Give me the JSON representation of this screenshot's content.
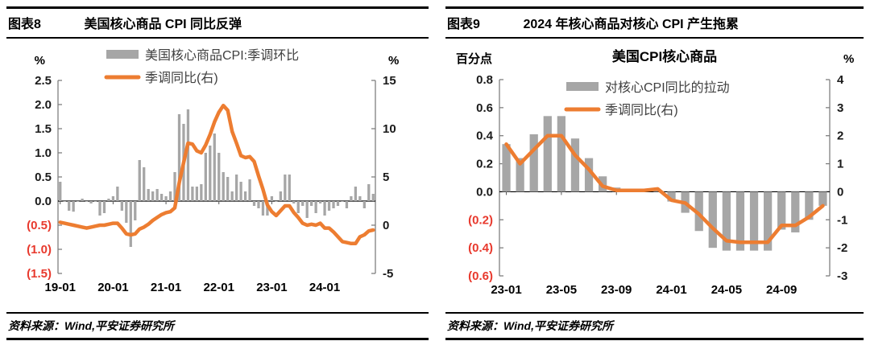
{
  "figures": [
    {
      "label": "图表8",
      "title": "美国核心商品 CPI 同比反弹",
      "source": "资料来源：Wind,平安证券研究所"
    },
    {
      "label": "图表9",
      "title": "2024 年核心商品对核心 CPI 产生拖累",
      "source": "资料来源：Wind,平安证券研究所"
    }
  ],
  "colors": {
    "bar": "#a6a6a6",
    "line": "#ed7d31",
    "negative_label": "#e8392d",
    "positive_label": "#1a1a1a",
    "axis": "#7f7f7f",
    "zero_line": "#000000"
  },
  "chart_data": [
    {
      "type": "bar+line",
      "title": "",
      "x_start": "19-01",
      "x_freq": "monthly",
      "x_ticks": [
        {
          "label": "19-01",
          "index": 0
        },
        {
          "label": "20-01",
          "index": 12
        },
        {
          "label": "21-01",
          "index": 24
        },
        {
          "label": "22-01",
          "index": 36
        },
        {
          "label": "23-01",
          "index": 48
        },
        {
          "label": "24-01",
          "index": 60
        }
      ],
      "axis_left": {
        "unit": "%",
        "min": -1.5,
        "max": 2.5,
        "ticks": [
          "2.5",
          "2.0",
          "1.5",
          "1.0",
          "0.5",
          "0.0",
          "(0.5)",
          "(1.0)",
          "(1.5)"
        ]
      },
      "axis_right": {
        "unit": "%",
        "min": -5,
        "max": 15,
        "ticks": [
          "15",
          "10",
          "5",
          "0",
          "-5"
        ]
      },
      "legend": [
        {
          "name": "美国核心商品CPI:季调环比",
          "swatch": "bar"
        },
        {
          "name": "季调同比(右)",
          "swatch": "line"
        }
      ],
      "grid": false,
      "series": [
        {
          "name": "美国核心商品CPI:季调环比",
          "kind": "bar",
          "axis": "left",
          "values": [
            0.4,
            0.0,
            -0.2,
            -0.22,
            0.0,
            0.05,
            0.0,
            -0.05,
            0.0,
            -0.3,
            -0.25,
            0.05,
            0.1,
            0.3,
            -0.2,
            -0.45,
            -0.95,
            -0.4,
            0.85,
            0.7,
            0.25,
            0.2,
            0.25,
            0.15,
            0.1,
            0.2,
            0.6,
            1.8,
            1.6,
            1.9,
            0.3,
            0.3,
            0.35,
            1.0,
            1.15,
            1.4,
            1.0,
            0.6,
            0.5,
            0.2,
            0.55,
            0.4,
            0.2,
            0.45,
            -0.1,
            -0.15,
            -0.3,
            -0.3,
            0.1,
            0.0,
            0.2,
            0.55,
            0.55,
            -0.05,
            -0.25,
            -0.1,
            -0.35,
            -0.1,
            -0.25,
            -0.05,
            -0.3,
            -0.2,
            -0.15,
            -0.1,
            0.0,
            -0.15,
            0.1,
            0.3,
            0.1,
            -0.15,
            0.35,
            0.15
          ]
        },
        {
          "name": "季调同比(右)",
          "kind": "line",
          "axis": "right",
          "values": [
            0.3,
            0.2,
            0.1,
            0.0,
            -0.1,
            -0.2,
            -0.3,
            -0.2,
            -0.1,
            0.0,
            0.0,
            0.1,
            0.2,
            0.2,
            -0.3,
            -0.9,
            -1.0,
            -0.9,
            -0.4,
            -0.2,
            0.1,
            0.5,
            0.8,
            1.1,
            1.3,
            1.4,
            1.8,
            4.4,
            6.5,
            8.5,
            8.4,
            7.7,
            7.5,
            8.3,
            9.4,
            10.7,
            11.7,
            12.4,
            11.9,
            9.7,
            8.5,
            7.2,
            7.0,
            7.1,
            6.6,
            5.1,
            3.7,
            2.1,
            1.4,
            1.0,
            1.5,
            2.0,
            2.0,
            1.3,
            0.8,
            0.2,
            0.0,
            0.1,
            0.0,
            0.2,
            -0.3,
            -0.3,
            -0.7,
            -1.2,
            -1.7,
            -1.8,
            -1.9,
            -1.9,
            -1.2,
            -1.0,
            -0.6,
            -0.5
          ]
        }
      ]
    },
    {
      "type": "bar+line",
      "title": "美国CPI核心商品",
      "x_start": "23-01",
      "x_freq": "monthly",
      "x_ticks": [
        {
          "label": "23-01",
          "index": 0
        },
        {
          "label": "23-05",
          "index": 4
        },
        {
          "label": "23-09",
          "index": 8
        },
        {
          "label": "24-01",
          "index": 12
        },
        {
          "label": "24-05",
          "index": 16
        },
        {
          "label": "24-09",
          "index": 20
        }
      ],
      "axis_left": {
        "unit": "百分点",
        "min": -0.6,
        "max": 0.8,
        "ticks": [
          "0.8",
          "0.6",
          "0.4",
          "0.2",
          "0.0",
          "(0.2)",
          "(0.4)",
          "(0.6)"
        ]
      },
      "axis_right": {
        "unit": "%",
        "min": -3,
        "max": 4,
        "ticks": [
          "4",
          "3",
          "2",
          "1",
          "0",
          "-1",
          "-2",
          "-3"
        ]
      },
      "legend": [
        {
          "name": "对核心CPI同比的拉动",
          "swatch": "bar"
        },
        {
          "name": "季调同比(右)",
          "swatch": "line"
        }
      ],
      "grid": false,
      "series": [
        {
          "name": "对核心CPI同比的拉动",
          "kind": "bar",
          "axis": "left",
          "values": [
            0.34,
            0.24,
            0.41,
            0.54,
            0.54,
            0.38,
            0.24,
            0.11,
            0.03,
            0.02,
            0.01,
            0.01,
            -0.07,
            -0.15,
            -0.28,
            -0.4,
            -0.42,
            -0.42,
            -0.42,
            -0.42,
            -0.27,
            -0.29,
            -0.2,
            -0.1
          ]
        },
        {
          "name": "季调同比(右)",
          "kind": "line",
          "axis": "right",
          "values": [
            1.7,
            1.0,
            1.5,
            2.0,
            2.0,
            1.3,
            0.8,
            0.2,
            0.05,
            0.05,
            0.05,
            0.1,
            -0.3,
            -0.4,
            -0.8,
            -1.3,
            -1.75,
            -1.8,
            -1.8,
            -1.8,
            -1.2,
            -1.2,
            -0.9,
            -0.5
          ]
        }
      ]
    }
  ]
}
